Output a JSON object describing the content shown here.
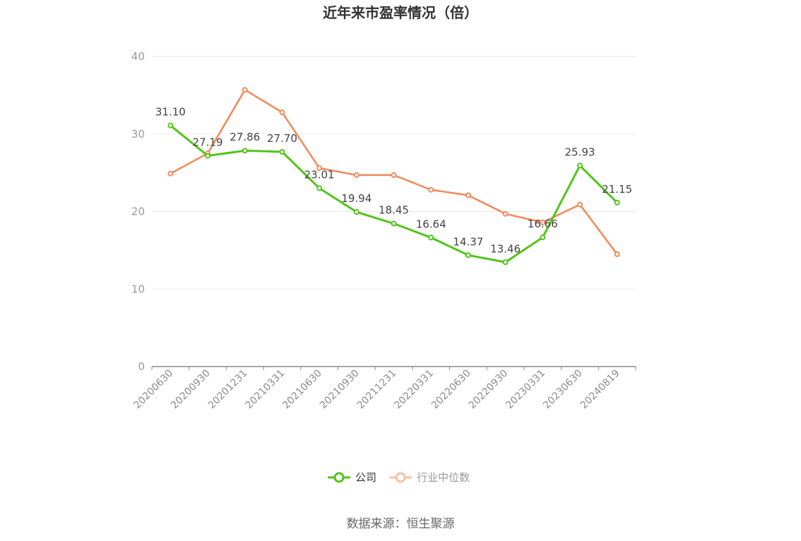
{
  "chart_data": {
    "type": "line",
    "title": "近年来市盈率情况（倍）",
    "categories": [
      "20200630",
      "20200930",
      "20201231",
      "20210331",
      "20210630",
      "20210930",
      "20211231",
      "20220331",
      "20220630",
      "20220930",
      "20230331",
      "20230630",
      "20240819"
    ],
    "yticks": [
      "0",
      "10",
      "20",
      "30",
      "40"
    ],
    "ylim": [
      0,
      40
    ],
    "grid": true,
    "legend_position": "bottom",
    "series": [
      {
        "name": "公司",
        "color": "#52c41a",
        "values": [
          31.1,
          27.19,
          27.86,
          27.7,
          23.01,
          19.94,
          18.45,
          16.64,
          14.37,
          13.46,
          16.66,
          25.93,
          21.15
        ],
        "labels": [
          "31.10",
          "27.19",
          "27.86",
          "27.70",
          "23.01",
          "19.94",
          "18.45",
          "16.64",
          "14.37",
          "13.46",
          "16.66",
          "25.93",
          "21.15"
        ]
      },
      {
        "name": "行业中位数",
        "color": "#f0895a",
        "values": [
          24.9,
          27.5,
          35.7,
          32.8,
          25.6,
          24.7,
          24.7,
          22.8,
          22.1,
          19.7,
          18.6,
          20.9,
          14.5
        ]
      }
    ]
  },
  "source": "数据来源：恒生聚源"
}
